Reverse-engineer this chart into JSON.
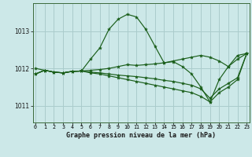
{
  "title": "Graphe pression niveau de la mer (hPa)",
  "background_color": "#cce8e8",
  "grid_color": "#aacccc",
  "line_color": "#1a5e1a",
  "x_ticks": [
    0,
    1,
    2,
    3,
    4,
    5,
    6,
    7,
    8,
    9,
    10,
    11,
    12,
    13,
    14,
    15,
    16,
    17,
    18,
    19,
    20,
    21,
    22,
    23
  ],
  "ylim": [
    1010.55,
    1013.75
  ],
  "yticks": [
    1011,
    1012,
    1013
  ],
  "series": [
    [
      1011.85,
      1011.95,
      1011.9,
      1011.88,
      1011.92,
      1011.93,
      1012.25,
      1012.55,
      1013.05,
      1013.32,
      1013.45,
      1013.38,
      1013.05,
      1012.6,
      1012.15,
      1012.18,
      1012.05,
      1011.85,
      1011.5,
      1011.1,
      1011.7,
      1012.05,
      1012.25,
      1012.4
    ],
    [
      1011.85,
      1011.95,
      1011.9,
      1011.88,
      1011.92,
      1011.93,
      1011.95,
      1011.97,
      1012.0,
      1012.05,
      1012.1,
      1012.08,
      1012.1,
      1012.12,
      1012.15,
      1012.2,
      1012.25,
      1012.3,
      1012.35,
      1012.3,
      1012.2,
      1012.05,
      1012.35,
      1012.4
    ],
    [
      1011.85,
      1011.95,
      1011.9,
      1011.88,
      1011.92,
      1011.93,
      1011.9,
      1011.88,
      1011.85,
      1011.82,
      1011.8,
      1011.78,
      1011.75,
      1011.72,
      1011.68,
      1011.65,
      1011.6,
      1011.55,
      1011.45,
      1011.2,
      1011.45,
      1011.6,
      1011.75,
      1012.4
    ],
    [
      1012.0,
      1011.95,
      1011.9,
      1011.88,
      1011.92,
      1011.93,
      1011.88,
      1011.85,
      1011.8,
      1011.75,
      1011.7,
      1011.65,
      1011.6,
      1011.55,
      1011.5,
      1011.45,
      1011.4,
      1011.35,
      1011.25,
      1011.1,
      1011.35,
      1011.5,
      1011.7,
      1012.4
    ]
  ]
}
